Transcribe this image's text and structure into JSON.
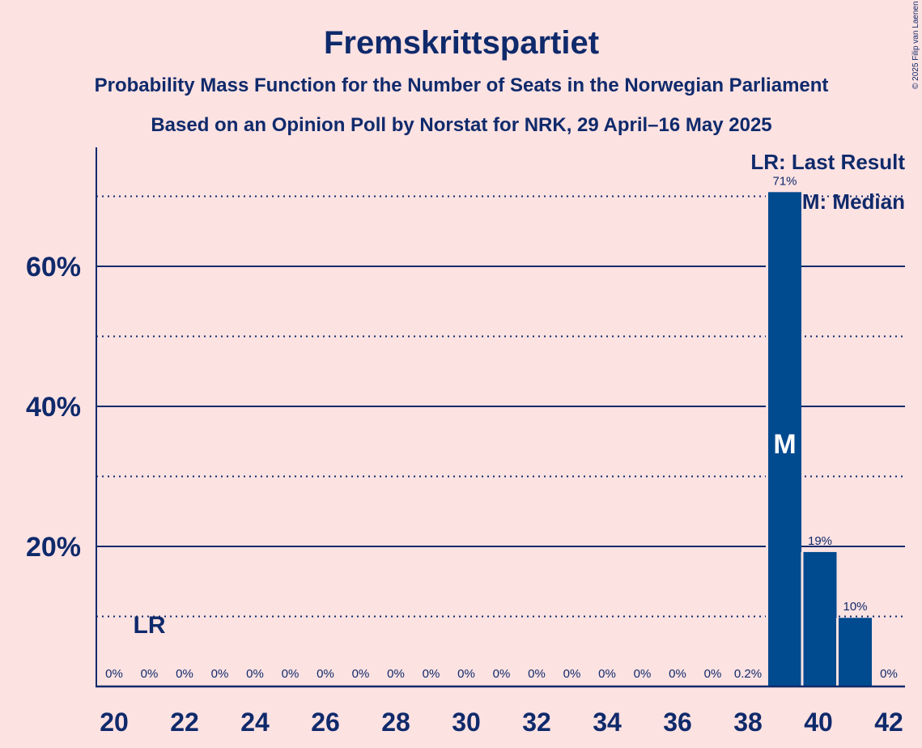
{
  "chart_data": {
    "type": "bar",
    "title": "Fremskrittspartiet",
    "subtitle1": "Probability Mass Function for the Number of Seats in the Norwegian Parliament",
    "subtitle2": "Based on an Opinion Poll by Norstat for NRK, 29 April–16 May 2025",
    "copyright": "© 2025 Filip van Laenen",
    "x": [
      20,
      21,
      22,
      23,
      24,
      25,
      26,
      27,
      28,
      29,
      30,
      31,
      32,
      33,
      34,
      35,
      36,
      37,
      38,
      39,
      40,
      41,
      42
    ],
    "values": [
      0,
      0,
      0,
      0,
      0,
      0,
      0,
      0,
      0,
      0,
      0,
      0,
      0,
      0,
      0,
      0,
      0,
      0,
      0.2,
      70.6,
      19.2,
      9.8,
      0
    ],
    "labels": [
      "0%",
      "0%",
      "0%",
      "0%",
      "0%",
      "0%",
      "0%",
      "0%",
      "0%",
      "0%",
      "0%",
      "0%",
      "0%",
      "0%",
      "0%",
      "0%",
      "0%",
      "0%",
      "0.2%",
      "71%",
      "19%",
      "10%",
      "0%"
    ],
    "xticks": [
      "20",
      "22",
      "24",
      "26",
      "28",
      "30",
      "32",
      "34",
      "36",
      "38",
      "40",
      "42"
    ],
    "yticks": [
      {
        "value": 20,
        "label": "20%"
      },
      {
        "value": 40,
        "label": "40%"
      },
      {
        "value": 60,
        "label": "60%"
      }
    ],
    "minor_gridlines": [
      10,
      30,
      50,
      70
    ],
    "ylim": [
      0,
      77
    ],
    "last_result_seat": 21,
    "last_result_marker": "LR",
    "median_seat": 39,
    "median_marker": "M",
    "legend": {
      "lr": "LR: Last Result",
      "m": "M: Median",
      "placement": "top-right"
    },
    "bar_color": "#004a8f"
  }
}
